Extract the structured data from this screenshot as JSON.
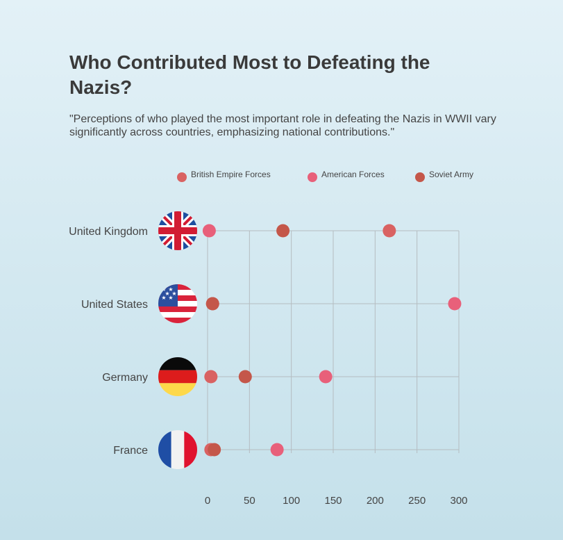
{
  "title": "Who Contributed Most to Defeating the Nazis?",
  "subtitle": "\"Perceptions of who played the most important role in defeating the Nazis in WWII vary significantly across countries, emphasizing national contributions.\"",
  "chart_data": {
    "type": "scatter",
    "title": "",
    "xlabel": "",
    "ylabel": "",
    "xlim": [
      0,
      300
    ],
    "x_ticks": [
      0,
      50,
      100,
      150,
      200,
      250,
      300
    ],
    "grid": true,
    "legend_position": "top",
    "categories": [
      "United Kingdom",
      "United States",
      "Germany",
      "France"
    ],
    "flags": [
      "uk-flag",
      "us-flag",
      "germany-flag",
      "france-flag"
    ],
    "series": [
      {
        "name": "British Empire Forces",
        "color": "#d96262",
        "values": [
          217,
          6,
          4,
          4
        ]
      },
      {
        "name": "American Forces",
        "color": "#e8607a",
        "values": [
          2,
          295,
          141,
          83
        ]
      },
      {
        "name": "Soviet Army",
        "color": "#c4574a",
        "values": [
          90,
          6,
          45,
          8
        ]
      }
    ]
  }
}
